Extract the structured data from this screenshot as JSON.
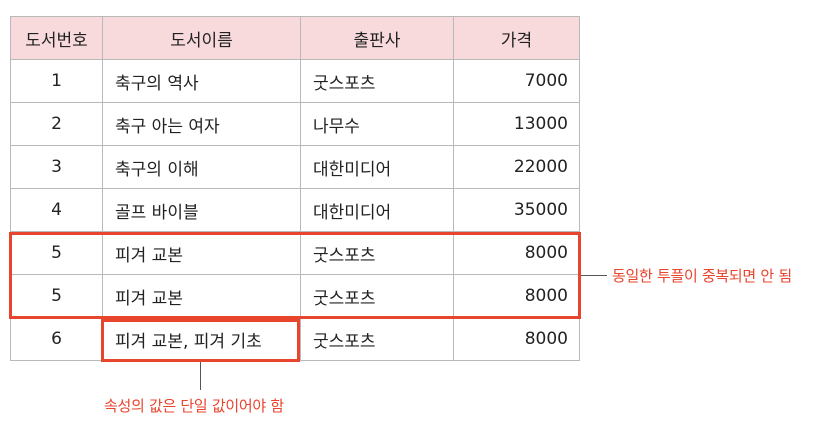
{
  "table": {
    "headers": [
      "도서번호",
      "도서이름",
      "출판사",
      "가격"
    ],
    "rows": [
      [
        "1",
        "축구의 역사",
        "굿스포츠",
        "7000"
      ],
      [
        "2",
        "축구 아는 여자",
        "나무수",
        "13000"
      ],
      [
        "3",
        "축구의 이해",
        "대한미디어",
        "22000"
      ],
      [
        "4",
        "골프 바이블",
        "대한미디어",
        "35000"
      ],
      [
        "5",
        "피겨 교본",
        "굿스포츠",
        "8000"
      ],
      [
        "5",
        "피겨 교본",
        "굿스포츠",
        "8000"
      ],
      [
        "6",
        "피겨 교본, 피겨 기초",
        "굿스포츠",
        "8000"
      ]
    ]
  },
  "annotations": {
    "duplicate_note": "동일한 투플이 중복되면 안 됨",
    "atomic_note": "속성의 값은 단일 값이어야 함"
  },
  "colors": {
    "header_bg": "#f8d9dc",
    "highlight": "#e8452e",
    "border": "#b9b9b9"
  }
}
